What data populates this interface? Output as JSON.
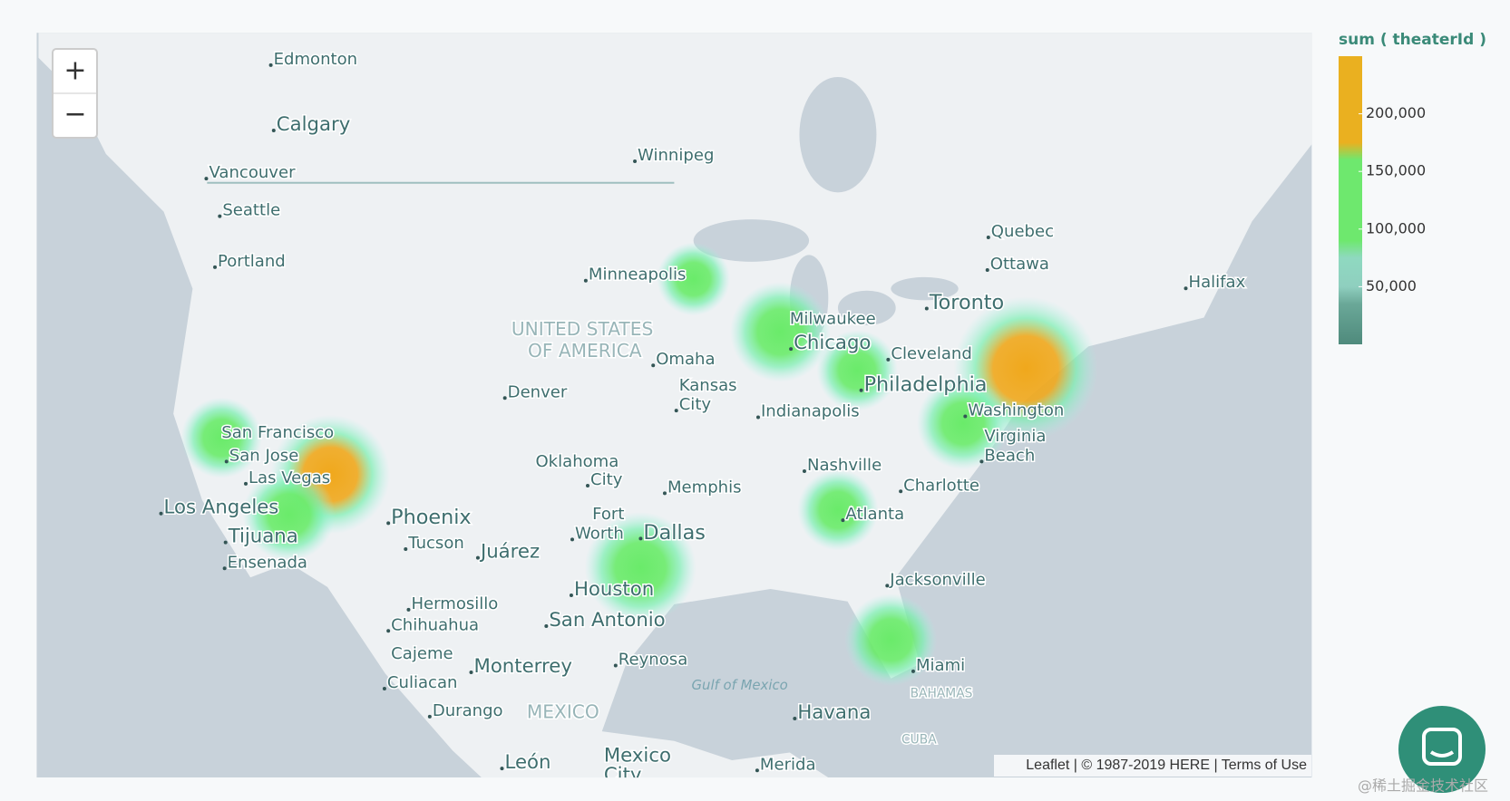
{
  "zoom": {
    "in": "+",
    "out": "−"
  },
  "map": {
    "labels": [
      "Edmonton",
      "Calgary",
      "Winnipeg",
      "Vancouver",
      "Seattle",
      "Portland",
      "Quebec",
      "Ottawa",
      "Halifax",
      "Toronto",
      "Minneapolis",
      "UNITED STATES",
      "OF AMERICA",
      "Milwaukee",
      "Chicago",
      "Cleveland",
      "Omaha",
      "Philadelphia",
      "Kansas",
      "City",
      "Denver",
      "Indianapolis",
      "Washington",
      "Virginia",
      "Beach",
      "San Francisco",
      "San Jose",
      "Las Vegas",
      "Oklahoma",
      "City",
      "Nashville",
      "Memphis",
      "Charlotte",
      "Los Angeles",
      "Atlanta",
      "Phoenix",
      "Fort",
      "Worth",
      "Dallas",
      "Tijuana",
      "Tucson",
      "Juárez",
      "Ensenada",
      "Houston",
      "Jacksonville",
      "Hermosillo",
      "San Antonio",
      "Chihuahua",
      "Cajeme",
      "Reynosa",
      "Monterrey",
      "Miami",
      "Gulf of Mexico",
      "BAHAMAS",
      "Culiacan",
      "Durango",
      "MEXICO",
      "Havana",
      "CUBA",
      "León",
      "Mexico",
      "City",
      "Merida"
    ]
  },
  "heatmap": {
    "values": [
      235000,
      225000,
      150000,
      120000,
      130000,
      120000,
      130000,
      145000,
      140000,
      110000,
      100000
    ]
  },
  "legend": {
    "title": "sum ( theaterId )",
    "range": [
      0,
      250000
    ],
    "ticks": [
      {
        "value": 50000,
        "label": "50,000"
      },
      {
        "value": 100000,
        "label": "100,000"
      },
      {
        "value": 150000,
        "label": "150,000"
      },
      {
        "value": 200000,
        "label": "200,000"
      }
    ]
  },
  "attribution": "Leaflet | © 1987-2019 HERE | Terms of Use",
  "watermark": "@稀土掘金技术社区"
}
